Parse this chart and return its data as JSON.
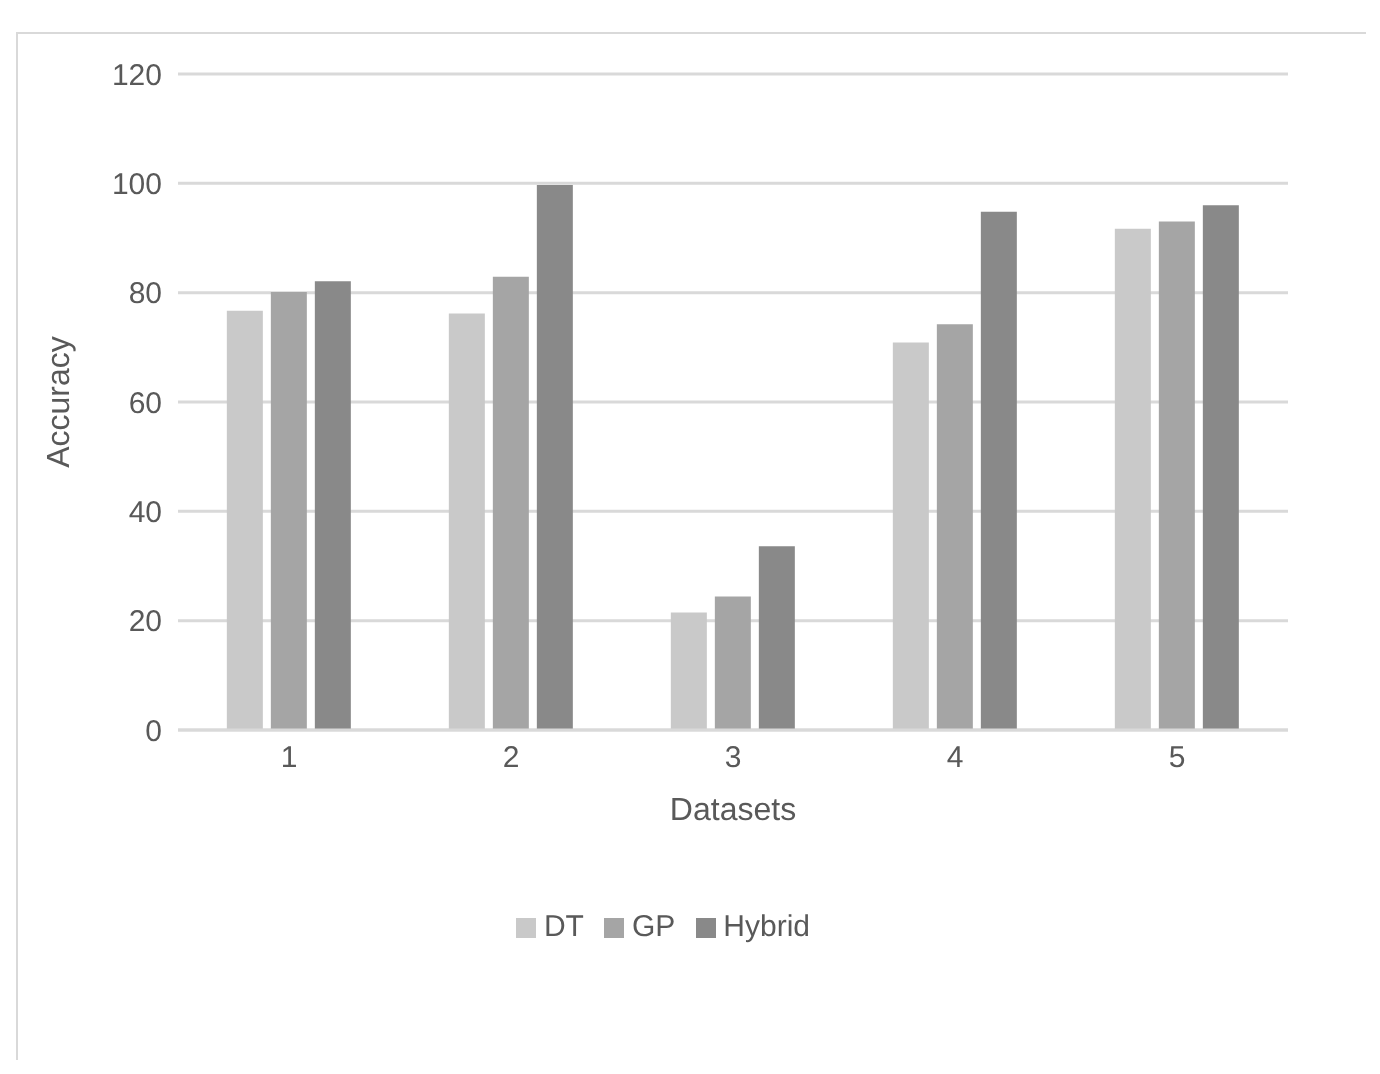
{
  "chart_data": {
    "type": "bar",
    "xlabel": "Datasets",
    "ylabel": "Accuracy",
    "categories": [
      "1",
      "2",
      "3",
      "4",
      "5"
    ],
    "series": [
      {
        "name": "DT",
        "color": "#c9c9c9",
        "values": [
          76.7,
          76.2,
          21.5,
          70.9,
          91.7
        ]
      },
      {
        "name": "GP",
        "color": "#a5a5a5",
        "values": [
          80.1,
          82.9,
          24.4,
          74.2,
          93
        ]
      },
      {
        "name": "Hybrid",
        "color": "#898989",
        "values": [
          82.1,
          99.7,
          33.6,
          94.8,
          96
        ]
      }
    ],
    "ylim": [
      0,
      120
    ],
    "yticks": [
      0,
      20,
      40,
      60,
      80,
      100,
      120
    ],
    "grid": "y",
    "legend": "bottom"
  }
}
